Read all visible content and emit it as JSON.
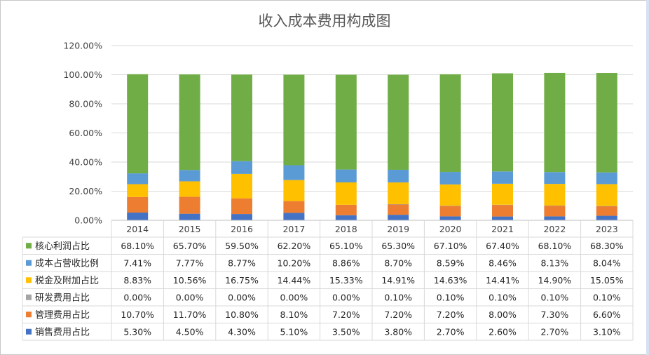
{
  "chart_data": {
    "type": "bar",
    "stacked": true,
    "title": "收入成本费用构成图",
    "categories": [
      "2014",
      "2015",
      "2016",
      "2017",
      "2018",
      "2019",
      "2020",
      "2021",
      "2022",
      "2023"
    ],
    "y_ticks": [
      "0.00%",
      "20.00%",
      "40.00%",
      "60.00%",
      "80.00%",
      "100.00%",
      "120.00%"
    ],
    "ylim": [
      0,
      120
    ],
    "grid": true,
    "legend": "data-table",
    "series": [
      {
        "name": "销售费用占比",
        "color": "#4472c4",
        "values": [
          5.3,
          4.5,
          4.3,
          5.1,
          3.5,
          3.8,
          2.7,
          2.6,
          2.7,
          3.1
        ],
        "labels": [
          "5.30%",
          "4.50%",
          "4.30%",
          "5.10%",
          "3.50%",
          "3.80%",
          "2.70%",
          "2.60%",
          "2.70%",
          "3.10%"
        ]
      },
      {
        "name": "管理费用占比",
        "color": "#ed7d31",
        "values": [
          10.7,
          11.7,
          10.8,
          8.1,
          7.2,
          7.2,
          7.2,
          8.0,
          7.3,
          6.6
        ],
        "labels": [
          "10.70%",
          "11.70%",
          "10.80%",
          "8.10%",
          "7.20%",
          "7.20%",
          "7.20%",
          "8.00%",
          "7.30%",
          "6.60%"
        ]
      },
      {
        "name": "研发费用占比",
        "color": "#a5a5a5",
        "values": [
          0,
          0,
          0,
          0,
          0,
          0.1,
          0.1,
          0.1,
          0.1,
          0.1
        ],
        "labels": [
          "0.00%",
          "0.00%",
          "0.00%",
          "0.00%",
          "0.00%",
          "0.10%",
          "0.10%",
          "0.10%",
          "0.10%",
          "0.10%"
        ]
      },
      {
        "name": "税金及附加占比",
        "color": "#ffc000",
        "values": [
          8.83,
          10.56,
          16.75,
          14.44,
          15.33,
          14.91,
          14.63,
          14.41,
          14.9,
          15.05
        ],
        "labels": [
          "8.83%",
          "10.56%",
          "16.75%",
          "14.44%",
          "15.33%",
          "14.91%",
          "14.63%",
          "14.41%",
          "14.90%",
          "15.05%"
        ]
      },
      {
        "name": "成本占营收比例",
        "color": "#5b9bd5",
        "values": [
          7.41,
          7.77,
          8.77,
          10.2,
          8.86,
          8.7,
          8.59,
          8.46,
          8.13,
          8.04
        ],
        "labels": [
          "7.41%",
          "7.77%",
          "8.77%",
          "10.20%",
          "8.86%",
          "8.70%",
          "8.59%",
          "8.46%",
          "8.13%",
          "8.04%"
        ]
      },
      {
        "name": "核心利润占比",
        "color": "#70ad47",
        "values": [
          68.1,
          65.7,
          59.5,
          62.2,
          65.1,
          65.3,
          67.1,
          67.4,
          68.1,
          68.3
        ],
        "labels": [
          "68.10%",
          "65.70%",
          "59.50%",
          "62.20%",
          "65.10%",
          "65.30%",
          "67.10%",
          "67.40%",
          "68.10%",
          "68.30%"
        ]
      }
    ],
    "table_rows_top_to_bottom": [
      "核心利润占比",
      "成本占营收比例",
      "税金及附加占比",
      "研发费用占比",
      "管理费用占比",
      "销售费用占比"
    ]
  }
}
